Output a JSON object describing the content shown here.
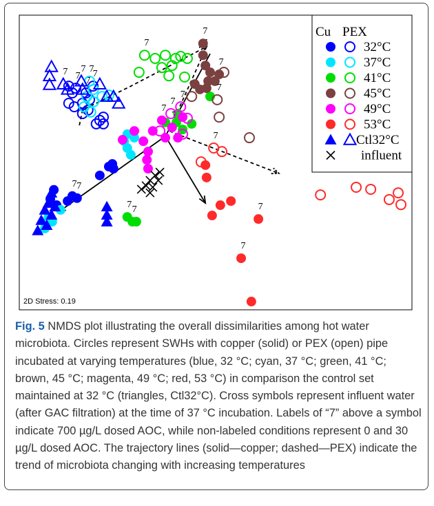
{
  "chart_data": {
    "type": "scatter",
    "xlim": [
      0,
      100
    ],
    "ylim": [
      0,
      100
    ],
    "stress": "2D Stress: 0.19",
    "legend_headers": [
      "Cu",
      "PEX"
    ],
    "series": [
      {
        "name": "32°C",
        "color": "#0000ff",
        "marker": "circle",
        "groups": [
          {
            "x": [
              20.5,
              22.8,
              23.7,
              24.0,
              13.5,
              14.7,
              8.8,
              7.9,
              9.5,
              12.3
            ],
            "y": [
              45.6,
              48.6,
              49.5,
              47.9,
              38.6,
              37.9,
              40.7,
              37.6,
              35.5,
              36.9
            ],
            "labels": [
              null,
              null,
              null,
              null,
              "7",
              "7",
              null,
              null,
              null,
              null
            ]
          },
          {
            "x": [
              12.6,
              13.5,
              14.4,
              14.0,
              16.1,
              17.0,
              17.9,
              16.1,
              17.5,
              12.6,
              20.5,
              21.4,
              19.6,
              18.8,
              21.4
            ],
            "y": [
              75.9,
              73.6,
              75.2,
              68.9,
              70.1,
              73.6,
              71.3,
              66.6,
              67.8,
              70.1,
              64.3,
              63.1,
              63.1,
              75.9,
              65.4
            ],
            "labels": [
              null,
              null,
              "7",
              null,
              null,
              "7",
              null,
              null,
              null,
              null,
              null,
              null,
              null,
              "7",
              null
            ]
          }
        ]
      },
      {
        "name": "37°C",
        "color": "#00e5ff",
        "marker": "circle",
        "groups": [
          {
            "x": [
              27.5,
              26.7,
              28.4,
              29.3,
              27.5,
              7.4,
              8.4,
              6.5,
              10.5
            ],
            "y": [
              54.9,
              57.2,
              52.6,
              58.4,
              59.6,
              31.3,
              29.9,
              27.6,
              33.9
            ],
            "labels": [
              null,
              null,
              null,
              null,
              null,
              null,
              null,
              null,
              null
            ]
          },
          {
            "x": [
              17.9,
              18.9,
              17.2,
              18.9,
              21.1,
              22.8,
              16.5,
              18.2
            ],
            "y": [
              77.6,
              74.8,
              72.4,
              70.6,
              72.4,
              72.9,
              68.9,
              67.1
            ],
            "labels": [
              "7",
              null,
              null,
              null,
              null,
              null,
              null,
              null
            ]
          }
        ]
      },
      {
        "name": "41°C",
        "color": "#00dd00",
        "marker": "circle",
        "groups": [
          {
            "x": [
              27.5,
              28.8,
              29.8,
              40.4,
              40.0,
              41.6,
              43.9,
              37.2,
              48.6
            ],
            "y": [
              31.5,
              29.9,
              29.9,
              66.6,
              63.6,
              61.2,
              63.1,
              63.6,
              72.4
            ],
            "labels": [
              "7",
              "7",
              null,
              null,
              null,
              null,
              null,
              null,
              null
            ]
          },
          {
            "x": [
              31.9,
              34.6,
              37.2,
              39.8,
              41.1,
              42.8,
              36.3,
              38.9,
              38.1,
              30.5,
              42.1
            ],
            "y": [
              86.4,
              85.3,
              86.4,
              85.3,
              86.0,
              85.3,
              82.2,
              82.9,
              79.4,
              80.6,
              79.0
            ],
            "labels": [
              "7",
              null,
              null,
              null,
              null,
              null,
              null,
              null,
              null,
              null,
              null
            ]
          }
        ]
      },
      {
        "name": "45°C",
        "color": "#7b4040",
        "marker": "circle",
        "groups": [
          {
            "x": [
              46.8,
              47.4,
              48.6,
              48.1,
              47.7,
              46.0,
              44.7,
              49.8,
              50.9,
              46.8
            ],
            "y": [
              86.4,
              82.9,
              80.6,
              77.6,
              75.2,
              74.8,
              76.6,
              77.6,
              79.9,
              90.4
            ],
            "labels": [
              "7",
              null,
              null,
              null,
              null,
              null,
              null,
              null,
              "7",
              "7"
            ]
          },
          {
            "x": [
              52.1,
              50.4,
              50.9,
              58.6,
              43.9
            ],
            "y": [
              80.6,
              71.3,
              65.4,
              58.4,
              72.4
            ],
            "labels": [
              null,
              "7",
              null,
              null,
              null
            ]
          }
        ]
      },
      {
        "name": "49°C",
        "color": "#ff00ff",
        "marker": "circle",
        "groups": [
          {
            "x": [
              29.3,
              31.6,
              32.8,
              32.5,
              32.8,
              34.0,
              37.2,
              38.9,
              41.6,
              36.3,
              40.4,
              26.3
            ],
            "y": [
              60.7,
              57.2,
              53.7,
              50.9,
              47.9,
              60.7,
              58.4,
              61.9,
              65.4,
              64.3,
              58.4,
              57.7
            ],
            "labels": [
              null,
              null,
              null,
              null,
              null,
              null,
              null,
              "7",
              null,
              "7",
              null,
              null
            ]
          },
          {
            "x": [
              38.6,
              41.1,
              42.8,
              41.6,
              35.8
            ],
            "y": [
              66.6,
              68.9,
              65.0,
              59.6,
              60.7
            ],
            "labels": [
              "7",
              "7",
              null,
              null,
              null
            ]
          }
        ]
      },
      {
        "name": "53°C",
        "color": "#ff2a2a",
        "marker": "circle",
        "groups": [
          {
            "x": [
              47.7,
              51.2,
              53.9,
              49.1,
              60.9,
              56.5,
              59.1,
              47.4
            ],
            "y": [
              44.9,
              35.5,
              36.9,
              32.0,
              30.8,
              17.5,
              2.8,
              49.1
            ],
            "labels": [
              null,
              null,
              null,
              null,
              "7",
              "7",
              null,
              null
            ]
          },
          {
            "x": [
              46.3,
              49.5,
              51.6,
              76.7,
              85.8,
              89.5,
              94.2,
              96.5,
              97.2
            ],
            "y": [
              50.2,
              54.9,
              53.7,
              39.0,
              41.6,
              40.9,
              37.4,
              39.7,
              35.7
            ],
            "labels": [
              null,
              "7",
              null,
              null,
              null,
              null,
              null,
              null,
              null
            ]
          }
        ]
      },
      {
        "name": "Ctl32°C",
        "color": "#0000ff",
        "marker": "triangle",
        "groups": [
          {
            "x": [
              8.2,
              7.4,
              9.1,
              6.5,
              8.2,
              5.6,
              4.7,
              7.0,
              22.3,
              22.3,
              22.3
            ],
            "y": [
              39.7,
              36.2,
              35.0,
              33.9,
              32.2,
              30.4,
              26.9,
              28.7,
              35.0,
              32.2,
              29.9
            ],
            "labels": [
              null,
              null,
              null,
              null,
              null,
              null,
              null,
              null,
              null,
              null,
              null
            ]
          },
          {
            "x": [
              8.2,
              7.7,
              7.7,
              11.2,
              12.3,
              16.1,
              15.8,
              20.5,
              24.0,
              25.3,
              22.3
            ],
            "y": [
              82.5,
              79.4,
              76.4,
              76.6,
              74.8,
              74.8,
              77.6,
              76.6,
              72.4,
              70.1,
              72.4
            ],
            "labels": [
              null,
              null,
              null,
              "7",
              null,
              null,
              "7",
              null,
              null,
              null,
              null
            ]
          }
        ]
      },
      {
        "name": "influent",
        "color": "#000000",
        "marker": "cross",
        "groups": [
          {
            "x": [
              31.1,
              32.3,
              33.3,
              34.6,
              34.0,
              35.4,
              35.8,
              33.3
            ],
            "y": [
              40.9,
              42.1,
              43.9,
              45.6,
              41.6,
              43.9,
              46.7,
              39.7
            ],
            "labels": [
              null,
              null,
              null,
              null,
              null,
              null,
              null,
              null
            ]
          }
        ]
      }
    ],
    "trajectories": [
      {
        "style": "solid",
        "x": [
          48.6,
          37.2,
          10.0
        ],
        "y": [
          86.9,
          58.9,
          33.2
        ]
      },
      {
        "style": "solid",
        "x": [
          37.2,
          47.4
        ],
        "y": [
          58.9,
          36.2
        ]
      },
      {
        "style": "dashed",
        "x": [
          15.3,
          16.1,
          28.4,
          47.7
        ],
        "y": [
          62.6,
          67.8,
          75.9,
          89.3
        ]
      },
      {
        "style": "dashed",
        "x": [
          47.7,
          38.1,
          66.1
        ],
        "y": [
          89.3,
          60.7,
          46.3
        ]
      }
    ]
  },
  "caption": {
    "label": "Fig. 5",
    "text": " NMDS plot illustrating the overall dissimilarities among hot water microbiota. Circles represent SWHs with copper (solid) or PEX (open) pipe incubated at varying temperatures (blue, 32 °C; cyan, 37 °C; green, 41 °C; brown, 45 °C; magenta, 49 °C; red, 53 °C) in comparison the control set maintained at 32 °C (triangles, Ctl32°C). Cross symbols represent influent water (after GAC filtration) at the time of 37 °C incubation. Labels of “7” above a symbol indicate 700 µg/L dosed AOC, while non-labeled conditions represent 0 and 30 µg/L dosed AOC. The trajectory lines (solid—copper; dashed—PEX) indicate the trend of microbiota changing with increasing temperatures"
  }
}
